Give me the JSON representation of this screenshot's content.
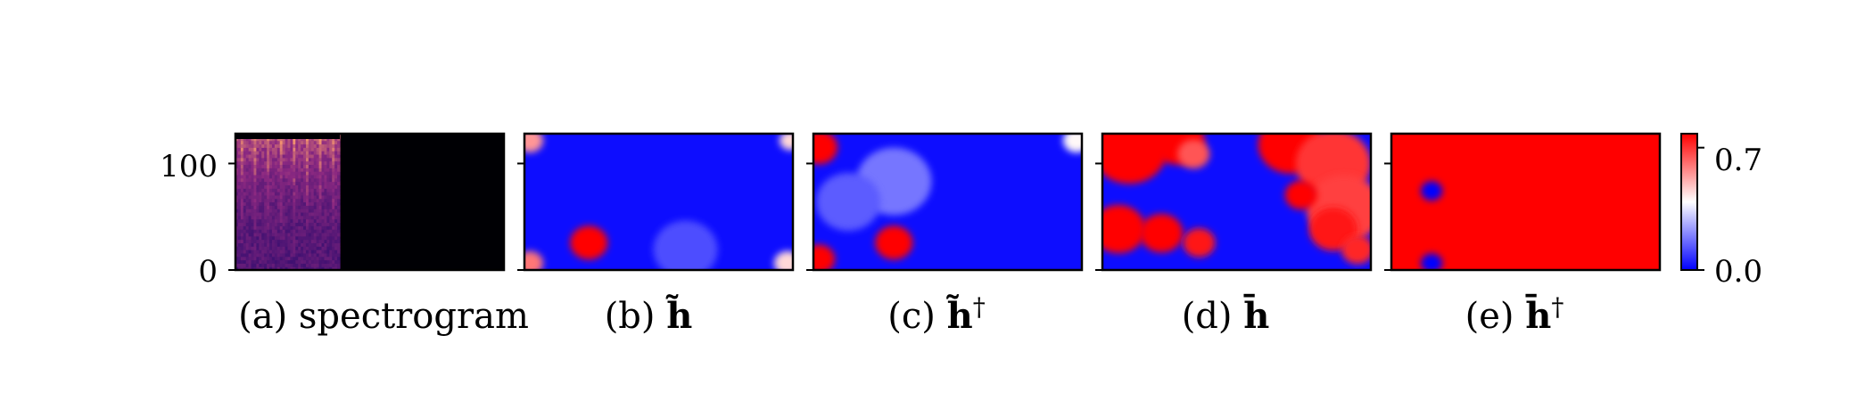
{
  "chart_data": {
    "type": "heatmap",
    "shared_yaxis": {
      "ylim": [
        0,
        128
      ],
      "yticks": [
        0,
        100
      ],
      "ytick_labels": [
        "0",
        "100"
      ]
    },
    "colorbar": {
      "colormap": "bwr",
      "range": [
        0.0,
        0.78
      ],
      "ticks": [
        0.0,
        0.7
      ],
      "tick_labels": [
        "0.0",
        "0.7"
      ],
      "colors": {
        "low": "#0000ff",
        "mid": "#ffffff",
        "high": "#ff0000"
      }
    },
    "panels": [
      {
        "id": "a",
        "caption": "(a) spectrogram",
        "kind": "spectrogram",
        "colormap": "magma",
        "signal_fraction_of_width": 0.39,
        "colors": {
          "background": "#000004",
          "low": "#3b0f70",
          "mid": "#8c2981",
          "high": "#fe9f6d"
        }
      },
      {
        "id": "b",
        "caption_prefix": "(b) ",
        "caption_symbol": "h̃",
        "caption_sup": "",
        "background_value": 0.02,
        "blobs": [
          {
            "x": 0.02,
            "y": 0.95,
            "value": 0.55,
            "r": 0.05
          },
          {
            "x": 0.99,
            "y": 0.95,
            "value": 0.45,
            "r": 0.04
          },
          {
            "x": 0.02,
            "y": 0.05,
            "value": 0.6,
            "r": 0.05
          },
          {
            "x": 0.98,
            "y": 0.05,
            "value": 0.45,
            "r": 0.05
          },
          {
            "x": 0.24,
            "y": 0.2,
            "value": 0.8,
            "r": 0.07
          },
          {
            "x": 0.6,
            "y": 0.15,
            "value": 0.12,
            "r": 0.12
          }
        ]
      },
      {
        "id": "c",
        "caption_prefix": "(c) ",
        "caption_symbol": "h̃",
        "caption_sup": "†",
        "background_value": 0.02,
        "blobs": [
          {
            "x": 0.02,
            "y": 0.9,
            "value": 0.8,
            "r": 0.07
          },
          {
            "x": 0.02,
            "y": 0.08,
            "value": 0.85,
            "r": 0.06
          },
          {
            "x": 0.3,
            "y": 0.2,
            "value": 0.8,
            "r": 0.07
          },
          {
            "x": 0.3,
            "y": 0.65,
            "value": 0.18,
            "r": 0.14
          },
          {
            "x": 0.13,
            "y": 0.5,
            "value": 0.14,
            "r": 0.12
          },
          {
            "x": 0.98,
            "y": 0.95,
            "value": 0.4,
            "r": 0.05
          }
        ]
      },
      {
        "id": "d",
        "caption_prefix": "(d) ",
        "caption_symbol": "h̄",
        "caption_sup": "",
        "background_value": 0.02,
        "blobs": [
          {
            "x": 0.1,
            "y": 0.88,
            "value": 0.78,
            "r": 0.14
          },
          {
            "x": 0.28,
            "y": 0.95,
            "value": 0.78,
            "r": 0.1
          },
          {
            "x": 0.34,
            "y": 0.85,
            "value": 0.65,
            "r": 0.06
          },
          {
            "x": 0.06,
            "y": 0.3,
            "value": 0.78,
            "r": 0.1
          },
          {
            "x": 0.22,
            "y": 0.27,
            "value": 0.78,
            "r": 0.08
          },
          {
            "x": 0.36,
            "y": 0.2,
            "value": 0.75,
            "r": 0.06
          },
          {
            "x": 0.7,
            "y": 0.92,
            "value": 0.78,
            "r": 0.12
          },
          {
            "x": 0.86,
            "y": 0.78,
            "value": 0.7,
            "r": 0.14
          },
          {
            "x": 0.9,
            "y": 0.45,
            "value": 0.68,
            "r": 0.14
          },
          {
            "x": 0.74,
            "y": 0.55,
            "value": 0.78,
            "r": 0.06
          },
          {
            "x": 0.86,
            "y": 0.3,
            "value": 0.75,
            "r": 0.09
          },
          {
            "x": 0.95,
            "y": 0.15,
            "value": 0.72,
            "r": 0.06
          }
        ]
      },
      {
        "id": "e",
        "caption_prefix": "(e) ",
        "caption_symbol": "h̄",
        "caption_sup": "†",
        "background_value": 0.78,
        "blobs": [
          {
            "x": 0.15,
            "y": 0.58,
            "value": 0.0,
            "r": 0.04
          },
          {
            "x": 0.15,
            "y": 0.05,
            "value": 0.0,
            "r": 0.04
          }
        ]
      }
    ]
  }
}
